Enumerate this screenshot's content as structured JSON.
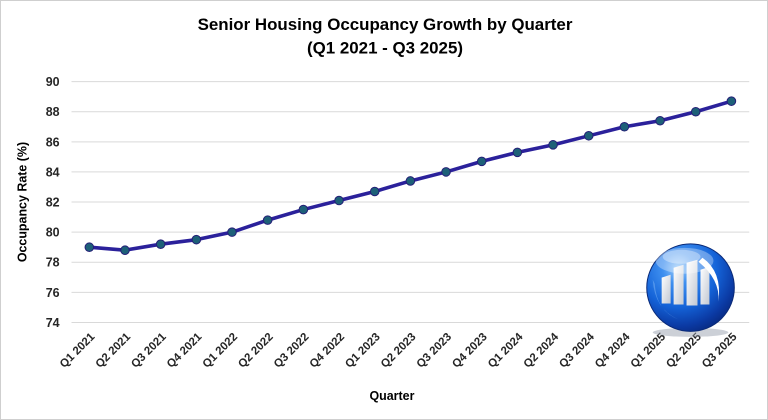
{
  "window": {
    "background": "#ffffff",
    "border_color": "#cfcfcf"
  },
  "chart_data": {
    "type": "line",
    "title": "Senior Housing Occupancy Growth by Quarter",
    "subtitle": "(Q1 2021 - Q3 2025)",
    "xlabel": "Quarter",
    "ylabel": "Occupancy Rate (%)",
    "categories": [
      "Q1 2021",
      "Q2 2021",
      "Q3 2021",
      "Q4 2021",
      "Q1 2022",
      "Q2 2022",
      "Q3 2022",
      "Q4 2022",
      "Q1 2023",
      "Q2 2023",
      "Q3 2023",
      "Q4 2023",
      "Q1 2024",
      "Q2 2024",
      "Q3 2024",
      "Q4 2024",
      "Q1 2025",
      "Q2 2025",
      "Q3 2025"
    ],
    "series": [
      {
        "name": "Occupancy Rate (%)",
        "values": [
          79.0,
          78.8,
          79.2,
          79.5,
          80.0,
          80.8,
          81.5,
          82.1,
          82.7,
          83.4,
          84.0,
          84.7,
          85.3,
          85.8,
          86.4,
          87.0,
          87.4,
          88.0,
          88.7
        ]
      }
    ],
    "ylim": [
      74,
      90
    ],
    "yticks": [
      74,
      76,
      78,
      80,
      82,
      84,
      86,
      88,
      90
    ],
    "ytick_step": 2,
    "grid": true,
    "legend_position": "none",
    "line_color": "#2b219b",
    "marker_fill": "#1d6078",
    "marker_stroke": "#241e77",
    "grid_color": "#d9d9d9",
    "tick_color": "#262626"
  },
  "logo": {
    "label": "building-growth-orb-logo",
    "orb_light": "#8fc4f7",
    "orb_mid": "#1464dc",
    "orb_dark": "#07267a",
    "building_color": "#ffffff"
  }
}
